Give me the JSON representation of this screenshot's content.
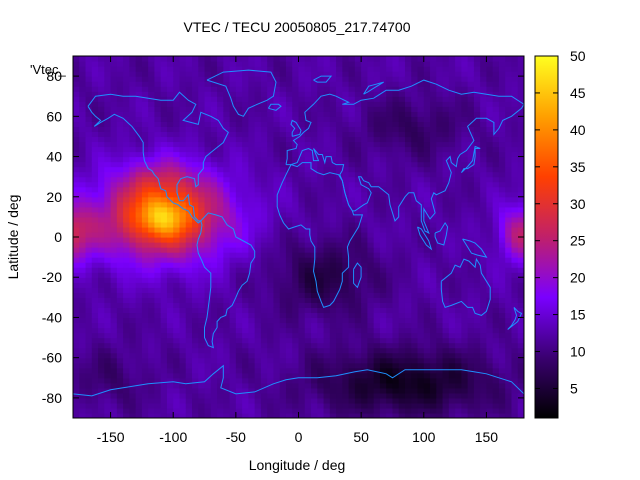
{
  "chart_data": {
    "type": "heatmap",
    "title": "VTEC / TECU 20050805_217.74700",
    "xlabel": "Longitude / deg",
    "ylabel": "Latitude / deg",
    "xlim": [
      -180,
      180
    ],
    "ylim": [
      -90,
      90
    ],
    "xticks": [
      -150,
      -100,
      -50,
      0,
      50,
      100,
      150
    ],
    "yticks": [
      -80,
      -60,
      -40,
      -20,
      0,
      20,
      40,
      60,
      80
    ],
    "colorbar": {
      "range": [
        1,
        50
      ],
      "ticks": [
        5,
        10,
        15,
        20,
        25,
        30,
        35,
        40,
        45,
        50
      ],
      "palette": [
        "#000000",
        "#3a0070",
        "#7a00ff",
        "#c0206a",
        "#ff4000",
        "#ffa000",
        "#ffff20"
      ]
    },
    "legend_key": "'Vtec_",
    "grid_resolution": {
      "dlon": 5,
      "dlat": 2.5
    },
    "features": {
      "background_level": 12,
      "peak": {
        "lon": -108,
        "lat": 10,
        "value": 46
      },
      "secondary_peak": {
        "lon": 178,
        "lat": 2,
        "value": 27
      },
      "low_region": {
        "lon": 85,
        "lat": -70,
        "value": 1
      }
    },
    "coastline_color": "#1e90ff"
  }
}
